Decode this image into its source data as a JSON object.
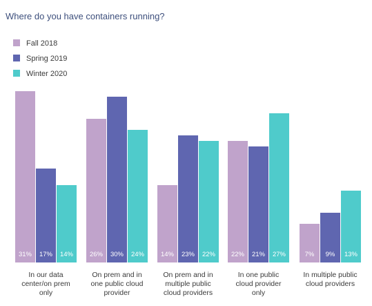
{
  "chart_data": {
    "type": "bar",
    "title": "Where do you have containers running?",
    "xlabel": "",
    "ylabel": "",
    "ylim": [
      0,
      32
    ],
    "grid": false,
    "legend_position": "top-left",
    "categories": [
      [
        "In our data",
        "center/on prem",
        "only"
      ],
      [
        "On prem and in",
        "one public cloud",
        "provider"
      ],
      [
        "On prem and in",
        "multiple public",
        "cloud providers"
      ],
      [
        "In one public",
        "cloud provider",
        "only"
      ],
      [
        "In multiple public",
        "cloud providers"
      ]
    ],
    "series": [
      {
        "name": "Fall 2018",
        "color": "#c0a3cb",
        "values": [
          31,
          26,
          14,
          22,
          7
        ]
      },
      {
        "name": "Spring 2019",
        "color": "#5f66b0",
        "values": [
          17,
          30,
          23,
          21,
          9
        ]
      },
      {
        "name": "Winter 2020",
        "color": "#4fcbcb",
        "values": [
          14,
          24,
          22,
          27,
          13
        ]
      }
    ],
    "value_suffix": "%"
  },
  "colors": {
    "title": "#3d4f7c",
    "text": "#3a3a3a",
    "bar_label": "#ffffff"
  }
}
